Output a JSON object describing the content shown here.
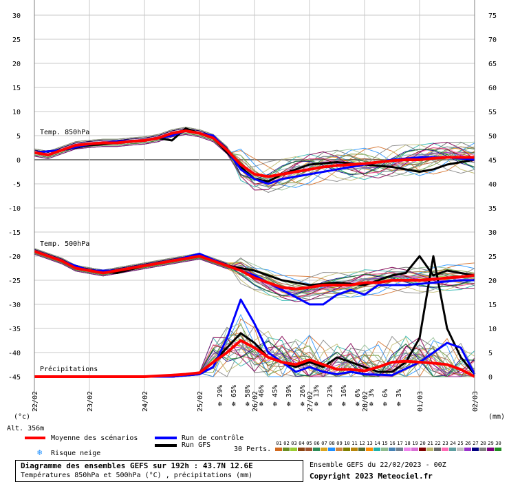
{
  "chart_data": {
    "type": "line",
    "left_axis_ticks": [
      30,
      25,
      20,
      15,
      10,
      5,
      0,
      -5,
      -10,
      -15,
      -20,
      -25,
      -30,
      -35,
      -40,
      -45
    ],
    "right_axis_ticks": [
      75,
      70,
      65,
      60,
      55,
      50,
      45,
      40,
      35,
      30,
      25,
      20,
      15,
      10,
      5,
      0
    ],
    "x_tick_labels": [
      "22/02",
      "23/02",
      "24/02",
      "25/02",
      "26/02",
      "27/02",
      "28/02",
      "01/03",
      "02/03"
    ],
    "left_unit": "(°c)",
    "right_unit": "(mm)",
    "altitude_label": "Alt. 356m",
    "panel_labels": {
      "t850": "Temp. 850hPa",
      "t500": "Temp. 500hPa",
      "precip": "Précipitations"
    },
    "snow_risk_percent": [
      "29%",
      "65%",
      "58%",
      "46%",
      "45%",
      "39%",
      "26%",
      "13%",
      "23%",
      "16%",
      "6%",
      "3%",
      "6%",
      "3%"
    ],
    "snow_risk_times_h": [
      81,
      87,
      93,
      99,
      105,
      111,
      117,
      123,
      129,
      135,
      141,
      147,
      153,
      159
    ],
    "series": [
      {
        "name": "Moyenne des scénarios",
        "color": "#ff0000",
        "t850": [
          [
            0,
            1.5
          ],
          [
            6,
            1
          ],
          [
            12,
            2
          ],
          [
            18,
            3
          ],
          [
            24,
            3.3
          ],
          [
            30,
            3.5
          ],
          [
            36,
            3.5
          ],
          [
            42,
            3.8
          ],
          [
            48,
            4
          ],
          [
            54,
            4.5
          ],
          [
            60,
            5.5
          ],
          [
            66,
            6
          ],
          [
            72,
            5.5
          ],
          [
            78,
            4.5
          ],
          [
            84,
            2
          ],
          [
            90,
            -1
          ],
          [
            96,
            -3
          ],
          [
            102,
            -3.5
          ],
          [
            108,
            -3
          ],
          [
            114,
            -2.5
          ],
          [
            120,
            -2
          ],
          [
            126,
            -1.5
          ],
          [
            132,
            -1.2
          ],
          [
            138,
            -1
          ],
          [
            144,
            -0.8
          ],
          [
            150,
            -0.5
          ],
          [
            156,
            -0.2
          ],
          [
            162,
            0
          ],
          [
            168,
            0
          ],
          [
            174,
            0.3
          ],
          [
            180,
            0.5
          ],
          [
            186,
            0.5
          ],
          [
            192,
            0.5
          ]
        ],
        "t500": [
          [
            0,
            -19
          ],
          [
            6,
            -20
          ],
          [
            12,
            -21
          ],
          [
            18,
            -22.5
          ],
          [
            24,
            -23
          ],
          [
            30,
            -23.5
          ],
          [
            36,
            -23
          ],
          [
            42,
            -22.5
          ],
          [
            48,
            -22
          ],
          [
            54,
            -21.5
          ],
          [
            60,
            -21
          ],
          [
            66,
            -20.5
          ],
          [
            72,
            -20
          ],
          [
            78,
            -21
          ],
          [
            84,
            -22
          ],
          [
            90,
            -23
          ],
          [
            96,
            -24.5
          ],
          [
            102,
            -25.5
          ],
          [
            108,
            -26.5
          ],
          [
            114,
            -26.8
          ],
          [
            120,
            -26.5
          ],
          [
            126,
            -26
          ],
          [
            132,
            -26
          ],
          [
            138,
            -26
          ],
          [
            144,
            -25.5
          ],
          [
            150,
            -25.5
          ],
          [
            156,
            -25
          ],
          [
            162,
            -25
          ],
          [
            168,
            -25
          ],
          [
            174,
            -24.8
          ],
          [
            180,
            -24.5
          ],
          [
            186,
            -24.3
          ],
          [
            192,
            -24
          ]
        ],
        "precip_mm": [
          [
            0,
            0
          ],
          [
            24,
            0
          ],
          [
            48,
            0
          ],
          [
            60,
            0.3
          ],
          [
            66,
            0.5
          ],
          [
            72,
            0.8
          ],
          [
            78,
            3
          ],
          [
            84,
            5
          ],
          [
            90,
            7.5
          ],
          [
            96,
            6
          ],
          [
            102,
            4
          ],
          [
            108,
            3
          ],
          [
            114,
            2.5
          ],
          [
            120,
            3.5
          ],
          [
            126,
            2.5
          ],
          [
            132,
            1.5
          ],
          [
            138,
            1.5
          ],
          [
            144,
            1.2
          ],
          [
            150,
            2
          ],
          [
            156,
            3
          ],
          [
            162,
            3.2
          ],
          [
            168,
            3
          ],
          [
            174,
            2.8
          ],
          [
            180,
            2.5
          ],
          [
            186,
            1.5
          ],
          [
            192,
            0
          ]
        ]
      },
      {
        "name": "Run de contrôle",
        "color": "#0000ff",
        "t850": [
          [
            0,
            1.5
          ],
          [
            12,
            2
          ],
          [
            24,
            3.2
          ],
          [
            36,
            3.8
          ],
          [
            48,
            4
          ],
          [
            60,
            5
          ],
          [
            66,
            6
          ],
          [
            72,
            5.5
          ],
          [
            78,
            5
          ],
          [
            84,
            2
          ],
          [
            90,
            -2
          ],
          [
            96,
            -4
          ],
          [
            102,
            -5
          ],
          [
            108,
            -4
          ],
          [
            114,
            -3.5
          ],
          [
            120,
            -3
          ],
          [
            132,
            -2
          ],
          [
            144,
            -1
          ],
          [
            156,
            0
          ],
          [
            168,
            0.5
          ],
          [
            180,
            0.5
          ],
          [
            192,
            0
          ]
        ],
        "t500": [
          [
            0,
            -19
          ],
          [
            12,
            -21
          ],
          [
            24,
            -23
          ],
          [
            36,
            -23
          ],
          [
            48,
            -22
          ],
          [
            60,
            -21
          ],
          [
            72,
            -19.5
          ],
          [
            84,
            -22
          ],
          [
            96,
            -24
          ],
          [
            108,
            -27
          ],
          [
            120,
            -30
          ],
          [
            126,
            -30
          ],
          [
            132,
            -28
          ],
          [
            138,
            -27
          ],
          [
            144,
            -28
          ],
          [
            150,
            -26
          ],
          [
            162,
            -26
          ],
          [
            174,
            -25.5
          ],
          [
            186,
            -25
          ],
          [
            192,
            -25
          ]
        ],
        "precip_mm": [
          [
            0,
            0
          ],
          [
            60,
            0
          ],
          [
            72,
            0.5
          ],
          [
            78,
            2
          ],
          [
            84,
            8
          ],
          [
            90,
            16
          ],
          [
            96,
            11
          ],
          [
            102,
            5
          ],
          [
            108,
            3
          ],
          [
            114,
            1
          ],
          [
            120,
            2
          ],
          [
            126,
            1
          ],
          [
            132,
            0.5
          ],
          [
            138,
            1
          ],
          [
            144,
            0.5
          ],
          [
            156,
            0.3
          ],
          [
            168,
            3
          ],
          [
            174,
            5
          ],
          [
            180,
            7
          ],
          [
            186,
            6
          ],
          [
            192,
            0.5
          ]
        ]
      },
      {
        "name": "Run GFS",
        "color": "#000000",
        "t850": [
          [
            0,
            1.5
          ],
          [
            12,
            2
          ],
          [
            24,
            3
          ],
          [
            36,
            3.5
          ],
          [
            48,
            4
          ],
          [
            54,
            4.5
          ],
          [
            60,
            4
          ],
          [
            66,
            6.5
          ],
          [
            72,
            5.5
          ],
          [
            78,
            4.5
          ],
          [
            84,
            1.5
          ],
          [
            90,
            -1.5
          ],
          [
            96,
            -4
          ],
          [
            102,
            -4.5
          ],
          [
            108,
            -3
          ],
          [
            114,
            -2
          ],
          [
            120,
            -1
          ],
          [
            132,
            -0.5
          ],
          [
            144,
            -1
          ],
          [
            156,
            -1.5
          ],
          [
            162,
            -2
          ],
          [
            168,
            -2.5
          ],
          [
            174,
            -2
          ],
          [
            180,
            -1
          ],
          [
            192,
            0
          ]
        ],
        "t500": [
          [
            0,
            -19
          ],
          [
            12,
            -21
          ],
          [
            24,
            -23
          ],
          [
            36,
            -23.5
          ],
          [
            48,
            -22
          ],
          [
            60,
            -21
          ],
          [
            72,
            -20
          ],
          [
            84,
            -22
          ],
          [
            96,
            -23
          ],
          [
            108,
            -25
          ],
          [
            120,
            -26
          ],
          [
            132,
            -25.5
          ],
          [
            144,
            -26
          ],
          [
            150,
            -25
          ],
          [
            156,
            -24
          ],
          [
            162,
            -23.5
          ],
          [
            168,
            -20
          ],
          [
            174,
            -24
          ],
          [
            180,
            -23
          ],
          [
            192,
            -24
          ]
        ],
        "precip_mm": [
          [
            0,
            0
          ],
          [
            60,
            0
          ],
          [
            72,
            0.5
          ],
          [
            78,
            3
          ],
          [
            84,
            6
          ],
          [
            90,
            9
          ],
          [
            96,
            7
          ],
          [
            102,
            4
          ],
          [
            108,
            3
          ],
          [
            114,
            2
          ],
          [
            120,
            3
          ],
          [
            126,
            2
          ],
          [
            132,
            4
          ],
          [
            138,
            3
          ],
          [
            144,
            2
          ],
          [
            150,
            1
          ],
          [
            156,
            1
          ],
          [
            162,
            3
          ],
          [
            168,
            8
          ],
          [
            174,
            25
          ],
          [
            180,
            10
          ],
          [
            186,
            4
          ],
          [
            192,
            0.5
          ]
        ]
      }
    ],
    "perturbation_colors": [
      "#d2691e",
      "#6b8e23",
      "#9acd32",
      "#8b4513",
      "#a0522d",
      "#2e8b57",
      "#daa520",
      "#1e90ff",
      "#cd853f",
      "#808000",
      "#b8860b",
      "#556b2f",
      "#ff8c00",
      "#20b2aa",
      "#8fbc8f",
      "#4682b4",
      "#708090",
      "#ee82ee",
      "#da70d6",
      "#800000",
      "#bdb76b",
      "#696969",
      "#ff69b4",
      "#5f9ea0",
      "#c0c0c0",
      "#9932cc",
      "#000080",
      "#808080",
      "#800080",
      "#228b22"
    ],
    "grid": true
  },
  "legend": {
    "mean_label": "Moyenne des scénarios",
    "control_label": "Run de contrôle",
    "gfs_label": "Run GFS",
    "snow_label": "Risque neige",
    "perts_label": "30 Perts.",
    "pert_numbers": [
      "01",
      "02",
      "03",
      "04",
      "05",
      "06",
      "07",
      "08",
      "09",
      "10",
      "11",
      "12",
      "13",
      "14",
      "15",
      "16",
      "17",
      "18",
      "19",
      "20",
      "21",
      "22",
      "23",
      "24",
      "25",
      "26",
      "27",
      "28",
      "29",
      "30"
    ]
  },
  "footer": {
    "title": "Diagramme des ensembles GEFS sur 192h : 43.7N 12.6E",
    "subtitle": "Températures 850hPa et 500hPa (°C) , précipitations (mm)",
    "ensemble_info": "Ensemble GEFS du 22/02/2023 - 00Z",
    "copyright": "Copyright 2023 Meteociel.fr"
  }
}
